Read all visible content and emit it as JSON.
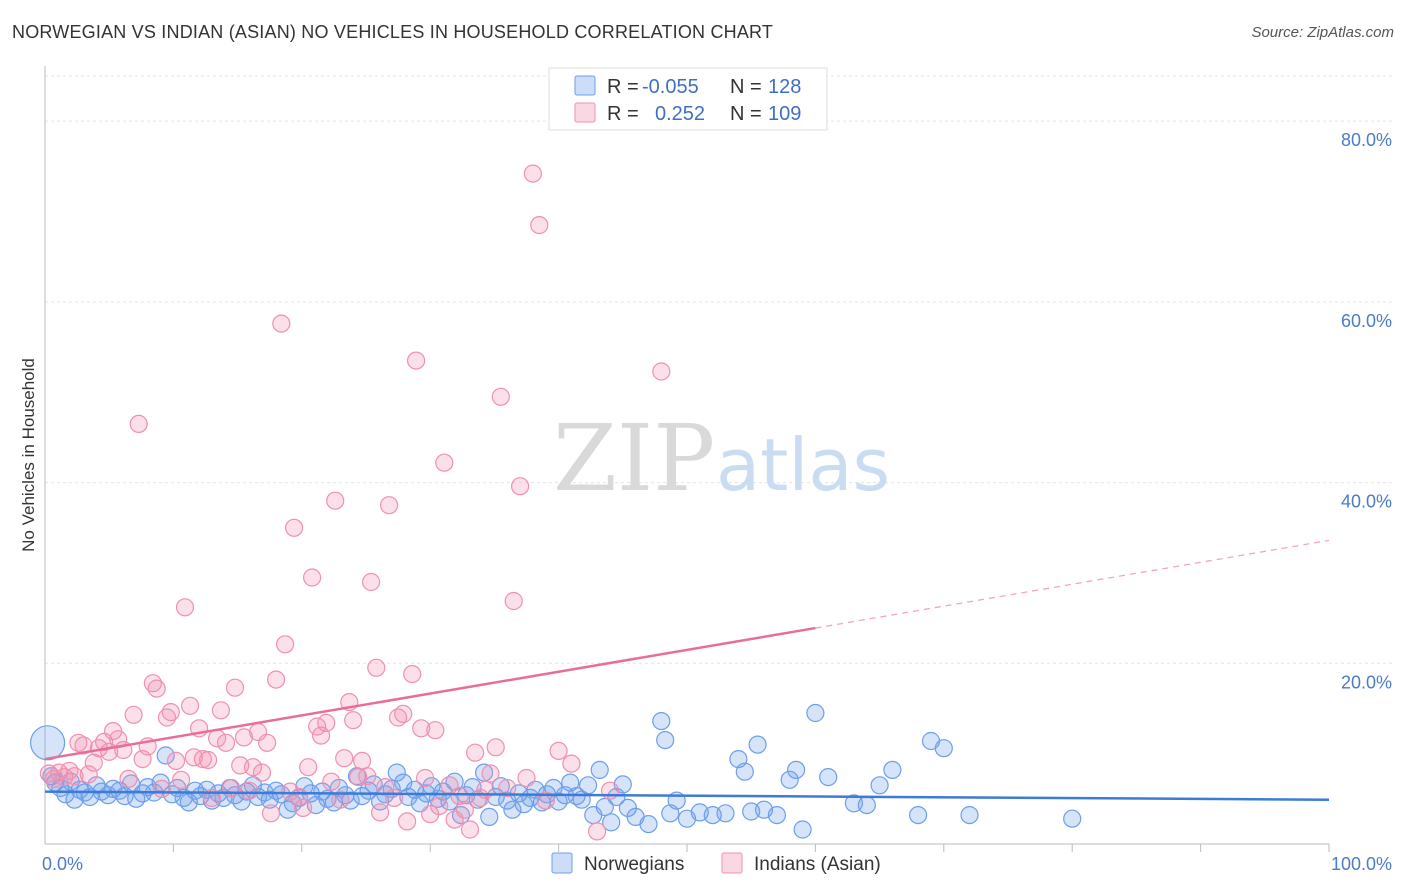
{
  "header": {
    "title": "NORWEGIAN VS INDIAN (ASIAN) NO VEHICLES IN HOUSEHOLD CORRELATION CHART",
    "source": "Source: ZipAtlas.com"
  },
  "watermark": {
    "zip": "ZIP",
    "atlas": "atlas"
  },
  "legend_top": {
    "rows": [
      {
        "r_label": "R =",
        "r_value": "-0.055",
        "n_label": "N =",
        "n_value": "128",
        "color": "#6d9eeb"
      },
      {
        "r_label": "R =",
        "r_value": "0.252",
        "n_label": "N =",
        "n_value": "109",
        "color": "#f08fb0"
      }
    ]
  },
  "chart_data": {
    "type": "scatter",
    "title": "NORWEGIAN VS INDIAN (ASIAN) NO VEHICLES IN HOUSEHOLD CORRELATION CHART",
    "xlabel": "",
    "ylabel": "No Vehicles in Household",
    "xlim": [
      0,
      100
    ],
    "ylim": [
      0,
      85
    ],
    "x_tick_labels": {
      "min": "0.0%",
      "max": "100.0%"
    },
    "y_ticks": [
      {
        "value": 20,
        "label": "20.0%"
      },
      {
        "value": 40,
        "label": "40.0%"
      },
      {
        "value": 60,
        "label": "60.0%"
      },
      {
        "value": 80,
        "label": "80.0%"
      }
    ],
    "grid": true,
    "legend_position": "bottom",
    "series": [
      {
        "name": "Norwegians",
        "color": "#6d9eeb",
        "r": -0.055,
        "n": 128,
        "trend": {
          "x0": 0,
          "y0": 5.8,
          "x1": 100,
          "y1": 4.9
        },
        "points": [
          [
            0.2,
            11.2
          ],
          [
            0.5,
            7.5
          ],
          [
            0.8,
            6.8
          ],
          [
            1.2,
            6.2
          ],
          [
            1.6,
            5.5
          ],
          [
            2.0,
            6.9
          ],
          [
            2.3,
            4.9
          ],
          [
            2.7,
            6.0
          ],
          [
            3.1,
            5.7
          ],
          [
            3.5,
            5.2
          ],
          [
            4.0,
            6.5
          ],
          [
            4.4,
            5.8
          ],
          [
            4.9,
            5.4
          ],
          [
            5.3,
            6.1
          ],
          [
            5.8,
            5.9
          ],
          [
            6.2,
            5.3
          ],
          [
            6.7,
            6.7
          ],
          [
            7.1,
            5.0
          ],
          [
            7.6,
            5.6
          ],
          [
            8.0,
            6.3
          ],
          [
            8.5,
            5.7
          ],
          [
            9.0,
            6.8
          ],
          [
            9.4,
            9.8
          ],
          [
            9.9,
            5.5
          ],
          [
            10.3,
            6.2
          ],
          [
            10.8,
            5.1
          ],
          [
            11.2,
            4.6
          ],
          [
            11.7,
            5.9
          ],
          [
            12.1,
            5.3
          ],
          [
            12.6,
            6.0
          ],
          [
            13.0,
            4.8
          ],
          [
            13.5,
            5.6
          ],
          [
            13.9,
            5.1
          ],
          [
            14.4,
            6.2
          ],
          [
            14.8,
            5.4
          ],
          [
            15.3,
            4.7
          ],
          [
            15.7,
            5.8
          ],
          [
            16.2,
            6.5
          ],
          [
            16.6,
            5.2
          ],
          [
            17.1,
            5.7
          ],
          [
            17.5,
            4.9
          ],
          [
            18.0,
            5.9
          ],
          [
            18.4,
            5.5
          ],
          [
            18.9,
            3.8
          ],
          [
            19.3,
            4.5
          ],
          [
            19.8,
            5.1
          ],
          [
            20.2,
            6.4
          ],
          [
            20.7,
            5.6
          ],
          [
            21.1,
            4.3
          ],
          [
            21.6,
            5.8
          ],
          [
            22.0,
            5.0
          ],
          [
            22.5,
            4.6
          ],
          [
            22.9,
            6.2
          ],
          [
            23.4,
            5.4
          ],
          [
            23.8,
            4.8
          ],
          [
            24.3,
            7.5
          ],
          [
            24.7,
            5.3
          ],
          [
            25.2,
            5.9
          ],
          [
            25.6,
            6.6
          ],
          [
            26.1,
            4.7
          ],
          [
            26.5,
            5.5
          ],
          [
            27.0,
            6.1
          ],
          [
            27.4,
            7.9
          ],
          [
            27.9,
            6.8
          ],
          [
            28.3,
            5.2
          ],
          [
            28.8,
            6.0
          ],
          [
            29.2,
            4.5
          ],
          [
            29.7,
            5.6
          ],
          [
            30.1,
            6.4
          ],
          [
            30.6,
            5.0
          ],
          [
            31.0,
            5.8
          ],
          [
            31.5,
            4.7
          ],
          [
            31.9,
            6.9
          ],
          [
            32.4,
            3.2
          ],
          [
            32.8,
            5.4
          ],
          [
            33.3,
            6.3
          ],
          [
            33.7,
            4.9
          ],
          [
            34.2,
            7.9
          ],
          [
            34.6,
            3.0
          ],
          [
            35.1,
            5.2
          ],
          [
            35.5,
            6.4
          ],
          [
            36.0,
            4.8
          ],
          [
            36.4,
            3.8
          ],
          [
            36.9,
            5.6
          ],
          [
            37.3,
            4.4
          ],
          [
            37.8,
            5.1
          ],
          [
            38.2,
            6.0
          ],
          [
            38.7,
            4.6
          ],
          [
            39.1,
            5.5
          ],
          [
            39.6,
            6.2
          ],
          [
            40.0,
            4.7
          ],
          [
            40.5,
            5.4
          ],
          [
            40.9,
            6.8
          ],
          [
            41.4,
            5.3
          ],
          [
            41.8,
            4.9
          ],
          [
            42.3,
            6.5
          ],
          [
            42.7,
            3.2
          ],
          [
            43.2,
            8.2
          ],
          [
            43.6,
            4.1
          ],
          [
            44.1,
            2.4
          ],
          [
            44.5,
            5.2
          ],
          [
            45.0,
            6.6
          ],
          [
            45.4,
            4.0
          ],
          [
            46.0,
            3.0
          ],
          [
            47.0,
            2.2
          ],
          [
            48.0,
            13.6
          ],
          [
            48.3,
            11.5
          ],
          [
            48.7,
            3.4
          ],
          [
            49.2,
            4.8
          ],
          [
            50.0,
            2.8
          ],
          [
            51.0,
            3.5
          ],
          [
            52.0,
            3.2
          ],
          [
            53.0,
            3.4
          ],
          [
            54.0,
            9.4
          ],
          [
            54.5,
            8.0
          ],
          [
            55.0,
            3.6
          ],
          [
            55.5,
            11.0
          ],
          [
            56.0,
            3.8
          ],
          [
            57.0,
            3.2
          ],
          [
            58.0,
            7.1
          ],
          [
            58.5,
            8.2
          ],
          [
            59.0,
            1.6
          ],
          [
            60.0,
            14.5
          ],
          [
            61.0,
            7.4
          ],
          [
            63.0,
            4.5
          ],
          [
            64.0,
            4.3
          ],
          [
            65.0,
            6.5
          ],
          [
            66.0,
            8.2
          ],
          [
            68.0,
            3.2
          ],
          [
            69.0,
            11.4
          ],
          [
            70.0,
            10.6
          ],
          [
            72.0,
            3.2
          ],
          [
            80.0,
            2.8
          ]
        ]
      },
      {
        "name": "Indians (Asian)",
        "color": "#f08fb0",
        "r": 0.252,
        "n": 109,
        "trend": {
          "x0": 0,
          "y0": 9.4,
          "x1": 60,
          "y1": 23.9,
          "dash_to_x": 100,
          "dash_to_y": 33.6
        },
        "points": [
          [
            0.3,
            7.8
          ],
          [
            0.7,
            7.2
          ],
          [
            1.1,
            7.9
          ],
          [
            1.5,
            7.4
          ],
          [
            1.9,
            8.1
          ],
          [
            2.3,
            7.5
          ],
          [
            2.6,
            11.2
          ],
          [
            3.0,
            10.9
          ],
          [
            3.4,
            7.7
          ],
          [
            3.8,
            9.0
          ],
          [
            4.2,
            10.6
          ],
          [
            4.6,
            11.3
          ],
          [
            5.0,
            10.2
          ],
          [
            5.3,
            12.5
          ],
          [
            5.7,
            11.6
          ],
          [
            6.1,
            10.4
          ],
          [
            6.5,
            7.2
          ],
          [
            6.9,
            14.3
          ],
          [
            7.3,
            46.5
          ],
          [
            7.6,
            9.4
          ],
          [
            8.0,
            10.8
          ],
          [
            8.4,
            17.8
          ],
          [
            8.7,
            17.2
          ],
          [
            9.1,
            6.1
          ],
          [
            9.5,
            14.0
          ],
          [
            9.8,
            14.6
          ],
          [
            10.2,
            9.2
          ],
          [
            10.6,
            7.1
          ],
          [
            10.9,
            26.2
          ],
          [
            11.3,
            15.3
          ],
          [
            11.6,
            9.6
          ],
          [
            12.0,
            12.8
          ],
          [
            12.3,
            9.4
          ],
          [
            12.7,
            9.3
          ],
          [
            13.0,
            5.1
          ],
          [
            13.4,
            11.7
          ],
          [
            13.7,
            14.8
          ],
          [
            14.1,
            11.2
          ],
          [
            14.5,
            6.2
          ],
          [
            14.8,
            17.3
          ],
          [
            15.2,
            8.7
          ],
          [
            15.5,
            11.8
          ],
          [
            15.9,
            5.9
          ],
          [
            16.2,
            8.5
          ],
          [
            16.6,
            12.4
          ],
          [
            16.9,
            7.9
          ],
          [
            17.3,
            11.2
          ],
          [
            17.6,
            3.4
          ],
          [
            18.0,
            18.2
          ],
          [
            18.4,
            57.6
          ],
          [
            18.7,
            22.1
          ],
          [
            19.1,
            5.8
          ],
          [
            19.4,
            35.0
          ],
          [
            19.8,
            5.2
          ],
          [
            20.1,
            4.0
          ],
          [
            20.5,
            8.5
          ],
          [
            20.8,
            29.5
          ],
          [
            21.2,
            13.0
          ],
          [
            21.5,
            12.0
          ],
          [
            21.9,
            13.4
          ],
          [
            22.3,
            6.9
          ],
          [
            22.6,
            38.0
          ],
          [
            23.0,
            4.9
          ],
          [
            23.3,
            9.5
          ],
          [
            23.7,
            15.7
          ],
          [
            24.0,
            13.7
          ],
          [
            24.4,
            7.4
          ],
          [
            24.7,
            9.2
          ],
          [
            25.1,
            7.5
          ],
          [
            25.4,
            29.0
          ],
          [
            25.8,
            19.5
          ],
          [
            26.1,
            3.5
          ],
          [
            26.5,
            6.3
          ],
          [
            26.8,
            37.5
          ],
          [
            27.2,
            5.1
          ],
          [
            27.5,
            14.0
          ],
          [
            27.9,
            14.4
          ],
          [
            28.2,
            2.5
          ],
          [
            28.6,
            18.8
          ],
          [
            28.9,
            53.5
          ],
          [
            29.3,
            12.8
          ],
          [
            29.6,
            7.3
          ],
          [
            30.0,
            3.3
          ],
          [
            30.4,
            12.6
          ],
          [
            30.7,
            4.2
          ],
          [
            31.1,
            42.2
          ],
          [
            31.5,
            6.5
          ],
          [
            31.9,
            2.7
          ],
          [
            32.3,
            5.3
          ],
          [
            32.7,
            3.8
          ],
          [
            33.1,
            1.6
          ],
          [
            33.5,
            10.1
          ],
          [
            33.9,
            5.1
          ],
          [
            34.3,
            6.0
          ],
          [
            34.7,
            7.8
          ],
          [
            35.1,
            10.7
          ],
          [
            35.5,
            49.5
          ],
          [
            36.0,
            6.2
          ],
          [
            36.5,
            26.9
          ],
          [
            37.0,
            39.6
          ],
          [
            37.5,
            7.3
          ],
          [
            38.0,
            74.2
          ],
          [
            38.5,
            68.5
          ],
          [
            39.0,
            4.8
          ],
          [
            40.0,
            10.3
          ],
          [
            41.0,
            8.9
          ],
          [
            43.0,
            1.4
          ],
          [
            44.0,
            5.9
          ],
          [
            48.0,
            52.3
          ]
        ]
      }
    ]
  }
}
